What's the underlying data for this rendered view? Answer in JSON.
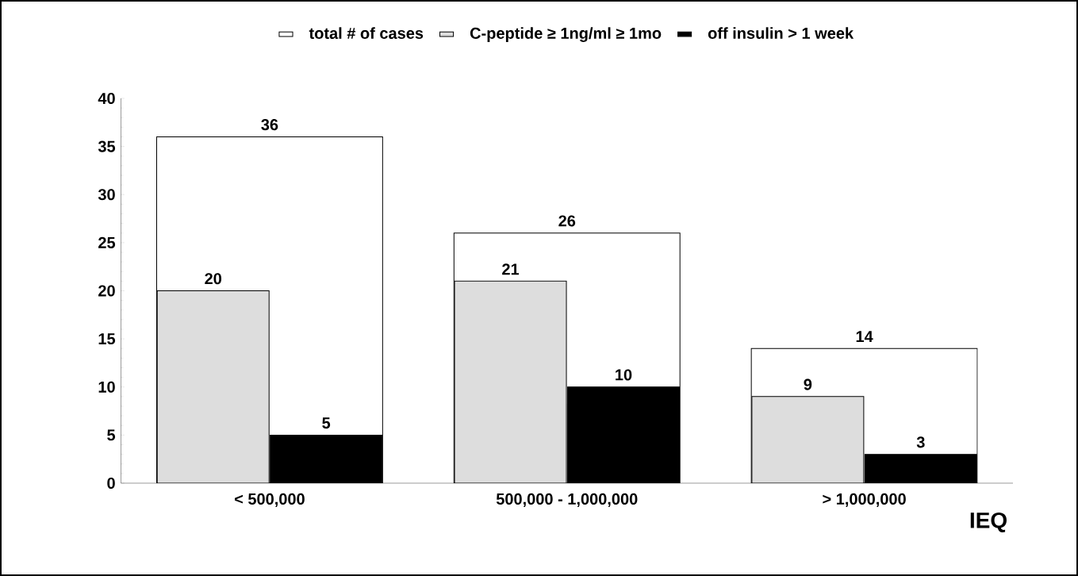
{
  "chart_data": {
    "type": "bar",
    "categories": [
      "< 500,000",
      "500,000 - 1,000,000",
      "> 1,000,000"
    ],
    "series": [
      {
        "name": "total # of cases",
        "color": "#ffffff",
        "values": [
          36,
          26,
          14
        ]
      },
      {
        "name": "C-peptide ≥ 1ng/ml ≥ 1mo",
        "color": "#dddddd",
        "values": [
          20,
          21,
          9
        ]
      },
      {
        "name": "off insulin > 1 week",
        "color": "#000000",
        "values": [
          5,
          10,
          3
        ]
      }
    ],
    "xlabel": "IEQ",
    "ylim": [
      0,
      40
    ],
    "yticks": [
      0,
      5,
      10,
      15,
      20,
      25,
      30,
      35,
      40
    ],
    "data_labels": true,
    "legend": "top"
  }
}
